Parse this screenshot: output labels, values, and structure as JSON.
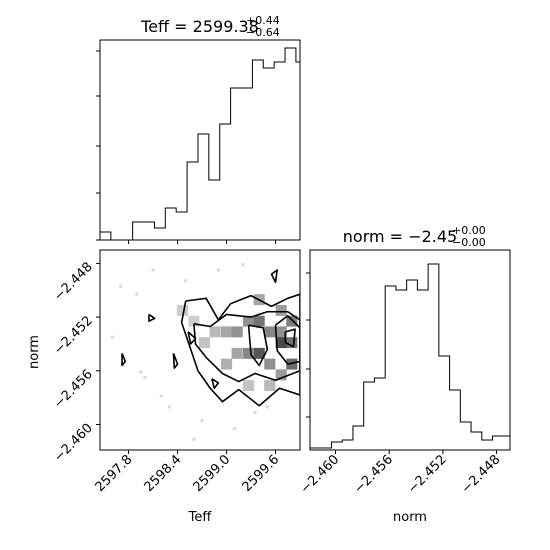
{
  "chart_data": [
    {
      "type": "histogram",
      "panel": "top-left",
      "title": {
        "prefix": "Teff = 2599.38",
        "sup": "+0.44",
        "sub": "−0.64"
      },
      "xlim": [
        2597.45,
        2599.9
      ],
      "ylim": [
        0,
        100
      ],
      "bin_edges": [
        2597.45,
        2597.583,
        2597.717,
        2597.85,
        2597.983,
        2598.117,
        2598.25,
        2598.383,
        2598.517,
        2598.65,
        2598.783,
        2598.917,
        2599.05,
        2599.183,
        2599.317,
        2599.45,
        2599.583,
        2599.717,
        2599.85,
        2599.9
      ],
      "counts": [
        4,
        0,
        0,
        9,
        9,
        6,
        16,
        14,
        39,
        53,
        30,
        58,
        76,
        76,
        90,
        86,
        89,
        96,
        89
      ],
      "ytick_values": [
        0,
        23.5,
        47,
        72,
        94.5
      ]
    },
    {
      "type": "histogram",
      "panel": "bottom-right",
      "title": {
        "prefix": "norm = −2.45",
        "sup": "+0.00",
        "sub": "−0.00"
      },
      "xlabel": "norm",
      "xlim": [
        -2.4619,
        -2.447
      ],
      "ylim": [
        0,
        100
      ],
      "xticks": [
        -2.46,
        -2.456,
        -2.452,
        -2.448
      ],
      "xtick_labels": [
        "−2.460",
        "−2.456",
        "−2.452",
        "−2.448"
      ],
      "bin_edges": [
        -2.4619,
        -2.4611,
        -2.4603,
        -2.4595,
        -2.4587,
        -2.4579,
        -2.4571,
        -2.4563,
        -2.4555,
        -2.4547,
        -2.4539,
        -2.4531,
        -2.4523,
        -2.4515,
        -2.4507,
        -2.4499,
        -2.4491,
        -2.4483,
        -2.447
      ],
      "counts": [
        1,
        1,
        4,
        5,
        12,
        34,
        36,
        82,
        80,
        85,
        80,
        93,
        47,
        30,
        14,
        9,
        5,
        7
      ],
      "ytick_values": [
        16.5,
        40.5,
        65,
        88.5
      ]
    },
    {
      "type": "heatmap",
      "panel": "bottom-left",
      "xlabel": "Teff",
      "ylabel": "norm",
      "xlim": [
        2597.45,
        2599.9
      ],
      "ylim": [
        -2.4619,
        -2.447
      ],
      "xticks": [
        2597.8,
        2598.4,
        2599.0,
        2599.6
      ],
      "xtick_labels": [
        "2597.8",
        "2598.4",
        "2599.0",
        "2599.6"
      ],
      "yticks": [
        -2.448,
        -2.452,
        -2.456,
        -2.46
      ],
      "ytick_labels": [
        "−2.448",
        "−2.452",
        "−2.456",
        "−2.460"
      ],
      "density_cells": [
        {
          "x": 2598.86,
          "y": -2.4531,
          "v": 0.35
        },
        {
          "x": 2599.0,
          "y": -2.4531,
          "v": 0.45
        },
        {
          "x": 2599.13,
          "y": -2.4531,
          "v": 0.55
        },
        {
          "x": 2599.27,
          "y": -2.4523,
          "v": 0.55
        },
        {
          "x": 2599.4,
          "y": -2.4523,
          "v": 0.7
        },
        {
          "x": 2599.53,
          "y": -2.4531,
          "v": 0.6
        },
        {
          "x": 2599.67,
          "y": -2.4531,
          "v": 0.55
        },
        {
          "x": 2599.8,
          "y": -2.4523,
          "v": 0.65
        },
        {
          "x": 2599.8,
          "y": -2.4539,
          "v": 0.7
        },
        {
          "x": 2599.67,
          "y": -2.4539,
          "v": 0.9
        },
        {
          "x": 2599.4,
          "y": -2.4547,
          "v": 0.85
        },
        {
          "x": 2599.27,
          "y": -2.4547,
          "v": 0.6
        },
        {
          "x": 2599.13,
          "y": -2.4547,
          "v": 0.45
        },
        {
          "x": 2599.0,
          "y": -2.4555,
          "v": 0.4
        },
        {
          "x": 2599.53,
          "y": -2.4555,
          "v": 0.55
        },
        {
          "x": 2599.8,
          "y": -2.4555,
          "v": 0.75
        },
        {
          "x": 2599.67,
          "y": -2.4563,
          "v": 0.5
        },
        {
          "x": 2598.73,
          "y": -2.4539,
          "v": 0.3
        },
        {
          "x": 2598.6,
          "y": -2.4523,
          "v": 0.25
        },
        {
          "x": 2598.46,
          "y": -2.4515,
          "v": 0.25
        },
        {
          "x": 2599.4,
          "y": -2.4507,
          "v": 0.45
        },
        {
          "x": 2599.67,
          "y": -2.4515,
          "v": 0.5
        },
        {
          "x": 2599.27,
          "y": -2.4571,
          "v": 0.3
        },
        {
          "x": 2599.53,
          "y": -2.4571,
          "v": 0.35
        }
      ],
      "sample_points": [
        [
          2598.1,
          -2.4485
        ],
        [
          2597.7,
          -2.4497
        ],
        [
          2598.2,
          -2.4579
        ],
        [
          2597.9,
          -2.4503
        ],
        [
          2598.3,
          -2.4587
        ],
        [
          2598.7,
          -2.4597
        ],
        [
          2599.1,
          -2.4603
        ],
        [
          2599.35,
          -2.4591
        ],
        [
          2598.0,
          -2.4565
        ],
        [
          2598.5,
          -2.4493
        ],
        [
          2598.9,
          -2.4485
        ],
        [
          2599.2,
          -2.4481
        ],
        [
          2597.6,
          -2.4535
        ],
        [
          2597.95,
          -2.4561
        ],
        [
          2598.6,
          -2.4611
        ],
        [
          2599.5,
          -2.4587
        ]
      ],
      "contours": [
        [
          [
            2598.5,
            -2.4508
          ],
          [
            2598.75,
            -2.4506
          ],
          [
            2598.9,
            -2.4522
          ],
          [
            2599.05,
            -2.451
          ],
          [
            2599.3,
            -2.4504
          ],
          [
            2599.55,
            -2.4512
          ],
          [
            2599.75,
            -2.4506
          ],
          [
            2599.9,
            -2.4503
          ],
          [
            2599.9,
            -2.4578
          ],
          [
            2599.65,
            -2.4573
          ],
          [
            2599.4,
            -2.4586
          ],
          [
            2599.15,
            -2.4574
          ],
          [
            2598.95,
            -2.4583
          ],
          [
            2598.8,
            -2.4573
          ],
          [
            2598.65,
            -2.456
          ],
          [
            2598.55,
            -2.4542
          ],
          [
            2598.45,
            -2.4524
          ],
          [
            2598.5,
            -2.4508
          ]
        ],
        [
          [
            2598.6,
            -2.4525
          ],
          [
            2598.8,
            -2.4527
          ],
          [
            2599.0,
            -2.4518
          ],
          [
            2599.3,
            -2.452
          ],
          [
            2599.5,
            -2.4516
          ],
          [
            2599.75,
            -2.4516
          ],
          [
            2599.9,
            -2.4522
          ],
          [
            2599.9,
            -2.456
          ],
          [
            2599.6,
            -2.4567
          ],
          [
            2599.35,
            -2.4562
          ],
          [
            2599.15,
            -2.4568
          ],
          [
            2598.95,
            -2.4562
          ],
          [
            2598.75,
            -2.455
          ],
          [
            2598.62,
            -2.454
          ],
          [
            2598.6,
            -2.4525
          ]
        ],
        [
          [
            2599.27,
            -2.4526
          ],
          [
            2599.45,
            -2.4528
          ],
          [
            2599.5,
            -2.4544
          ],
          [
            2599.4,
            -2.4556
          ],
          [
            2599.3,
            -2.4548
          ],
          [
            2599.27,
            -2.4526
          ]
        ],
        [
          [
            2599.6,
            -2.4526
          ],
          [
            2599.75,
            -2.4519
          ],
          [
            2599.9,
            -2.4528
          ],
          [
            2599.9,
            -2.4553
          ],
          [
            2599.75,
            -2.4555
          ],
          [
            2599.62,
            -2.4545
          ],
          [
            2599.6,
            -2.4526
          ]
        ],
        [
          [
            2599.72,
            -2.4531
          ],
          [
            2599.84,
            -2.4529
          ],
          [
            2599.82,
            -2.4542
          ],
          [
            2599.72,
            -2.4539
          ],
          [
            2599.72,
            -2.4531
          ]
        ],
        [
          [
            2598.53,
            -2.4531
          ],
          [
            2598.62,
            -2.4536
          ],
          [
            2598.56,
            -2.454
          ],
          [
            2598.53,
            -2.4531
          ]
        ],
        [
          [
            2598.35,
            -2.4547
          ],
          [
            2598.4,
            -2.4555
          ],
          [
            2598.36,
            -2.4558
          ],
          [
            2598.35,
            -2.4547
          ]
        ],
        [
          [
            2597.72,
            -2.4547
          ],
          [
            2597.76,
            -2.4553
          ],
          [
            2597.72,
            -2.4556
          ],
          [
            2597.72,
            -2.4547
          ]
        ],
        [
          [
            2598.05,
            -2.4518
          ],
          [
            2598.12,
            -2.4521
          ],
          [
            2598.05,
            -2.4523
          ],
          [
            2598.05,
            -2.4518
          ]
        ],
        [
          [
            2599.55,
            -2.4488
          ],
          [
            2599.62,
            -2.4485
          ],
          [
            2599.6,
            -2.4494
          ],
          [
            2599.55,
            -2.4488
          ]
        ],
        [
          [
            2598.82,
            -2.4566
          ],
          [
            2598.9,
            -2.4569
          ],
          [
            2598.85,
            -2.4573
          ],
          [
            2598.82,
            -2.4566
          ]
        ]
      ]
    }
  ]
}
